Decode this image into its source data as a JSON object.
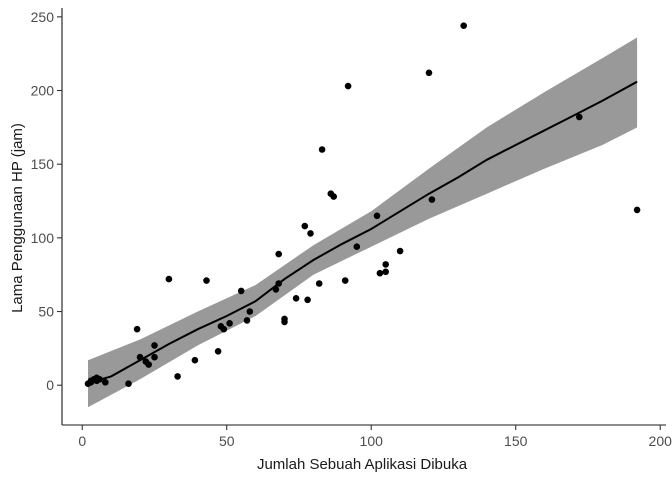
{
  "chart_data": {
    "type": "scatter",
    "title": "",
    "xlabel": "Jumlah Sebuah Aplikasi Dibuka",
    "ylabel": "Lama Penggunaan HP (jam)",
    "xlim": [
      -7,
      202
    ],
    "ylim": [
      -27,
      256
    ],
    "x_ticks": [
      0,
      50,
      100,
      150,
      200
    ],
    "x_tick_labels": [
      "0",
      "50",
      "100",
      "150",
      "200"
    ],
    "y_ticks": [
      0,
      50,
      100,
      150,
      200,
      250
    ],
    "y_tick_labels": [
      "0",
      "50",
      "100",
      "150",
      "200",
      "250"
    ],
    "grid": false,
    "legend": "none",
    "colors": {
      "points": "#000000",
      "fit_line": "#000000",
      "confidence_band": "#999999"
    },
    "points": [
      {
        "x": 2,
        "y": 1
      },
      {
        "x": 3,
        "y": 3
      },
      {
        "x": 3,
        "y": 2
      },
      {
        "x": 4,
        "y": 4
      },
      {
        "x": 5,
        "y": 3
      },
      {
        "x": 5,
        "y": 5
      },
      {
        "x": 6,
        "y": 4
      },
      {
        "x": 8,
        "y": 2
      },
      {
        "x": 16,
        "y": 1
      },
      {
        "x": 19,
        "y": 38
      },
      {
        "x": 20,
        "y": 19
      },
      {
        "x": 22,
        "y": 16
      },
      {
        "x": 23,
        "y": 14
      },
      {
        "x": 25,
        "y": 27
      },
      {
        "x": 25,
        "y": 19
      },
      {
        "x": 30,
        "y": 72
      },
      {
        "x": 33,
        "y": 6
      },
      {
        "x": 39,
        "y": 17
      },
      {
        "x": 43,
        "y": 71
      },
      {
        "x": 47,
        "y": 23
      },
      {
        "x": 48,
        "y": 40
      },
      {
        "x": 49,
        "y": 38
      },
      {
        "x": 51,
        "y": 42
      },
      {
        "x": 55,
        "y": 64
      },
      {
        "x": 57,
        "y": 44
      },
      {
        "x": 58,
        "y": 50
      },
      {
        "x": 67,
        "y": 65
      },
      {
        "x": 68,
        "y": 69
      },
      {
        "x": 68,
        "y": 89
      },
      {
        "x": 70,
        "y": 45
      },
      {
        "x": 70,
        "y": 43
      },
      {
        "x": 74,
        "y": 59
      },
      {
        "x": 77,
        "y": 108
      },
      {
        "x": 78,
        "y": 58
      },
      {
        "x": 79,
        "y": 103
      },
      {
        "x": 82,
        "y": 69
      },
      {
        "x": 83,
        "y": 160
      },
      {
        "x": 86,
        "y": 130
      },
      {
        "x": 87,
        "y": 128
      },
      {
        "x": 91,
        "y": 71
      },
      {
        "x": 92,
        "y": 203
      },
      {
        "x": 95,
        "y": 94
      },
      {
        "x": 102,
        "y": 115
      },
      {
        "x": 103,
        "y": 76
      },
      {
        "x": 105,
        "y": 82
      },
      {
        "x": 105,
        "y": 77
      },
      {
        "x": 110,
        "y": 91
      },
      {
        "x": 120,
        "y": 212
      },
      {
        "x": 121,
        "y": 126
      },
      {
        "x": 132,
        "y": 244
      },
      {
        "x": 172,
        "y": 182
      },
      {
        "x": 192,
        "y": 119
      }
    ],
    "fit_line": [
      {
        "x": 2,
        "y": 1.5
      },
      {
        "x": 10,
        "y": 6
      },
      {
        "x": 20,
        "y": 17
      },
      {
        "x": 30,
        "y": 28
      },
      {
        "x": 40,
        "y": 38
      },
      {
        "x": 50,
        "y": 47
      },
      {
        "x": 60,
        "y": 57
      },
      {
        "x": 70,
        "y": 72
      },
      {
        "x": 80,
        "y": 85
      },
      {
        "x": 90,
        "y": 96
      },
      {
        "x": 100,
        "y": 106
      },
      {
        "x": 110,
        "y": 118
      },
      {
        "x": 120,
        "y": 130
      },
      {
        "x": 130,
        "y": 141
      },
      {
        "x": 140,
        "y": 153
      },
      {
        "x": 150,
        "y": 163
      },
      {
        "x": 160,
        "y": 173
      },
      {
        "x": 170,
        "y": 183
      },
      {
        "x": 180,
        "y": 193
      },
      {
        "x": 192,
        "y": 206
      }
    ],
    "confidence_band": [
      {
        "x": 2,
        "lower": -15,
        "upper": 17
      },
      {
        "x": 20,
        "lower": 4,
        "upper": 31
      },
      {
        "x": 40,
        "lower": 27,
        "upper": 50
      },
      {
        "x": 60,
        "lower": 47,
        "upper": 68
      },
      {
        "x": 80,
        "lower": 75,
        "upper": 95
      },
      {
        "x": 100,
        "lower": 94,
        "upper": 118
      },
      {
        "x": 120,
        "lower": 113,
        "upper": 147
      },
      {
        "x": 140,
        "lower": 130,
        "upper": 175
      },
      {
        "x": 160,
        "lower": 147,
        "upper": 199
      },
      {
        "x": 180,
        "lower": 163,
        "upper": 222
      },
      {
        "x": 192,
        "lower": 175,
        "upper": 236
      }
    ]
  }
}
